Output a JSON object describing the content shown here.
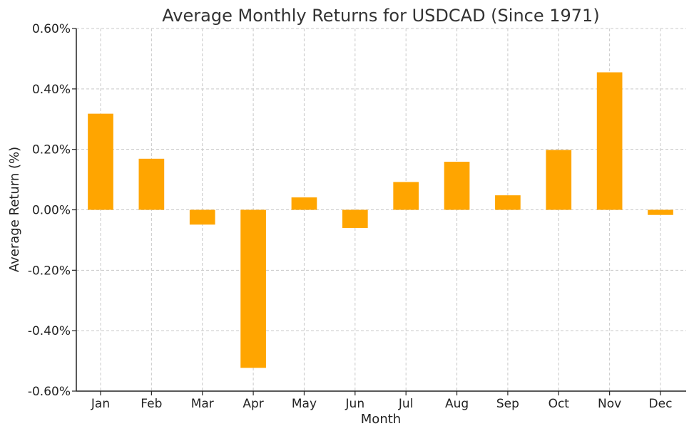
{
  "chart_data": {
    "type": "bar",
    "title": "Average Monthly Returns for USDCAD (Since 1971)",
    "xlabel": "Month",
    "ylabel": "Average Return (%)",
    "categories": [
      "Jan",
      "Feb",
      "Mar",
      "Apr",
      "May",
      "Jun",
      "Jul",
      "Aug",
      "Sep",
      "Oct",
      "Nov",
      "Dec"
    ],
    "values": [
      0.318,
      0.169,
      -0.049,
      -0.523,
      0.041,
      -0.06,
      0.092,
      0.159,
      0.048,
      0.198,
      0.455,
      -0.017
    ],
    "ylim": [
      -0.6,
      0.6
    ],
    "yticks": [
      -0.6,
      -0.4,
      -0.2,
      0.0,
      0.2,
      0.4,
      0.6
    ],
    "ytick_labels": [
      "-0.60%",
      "-0.40%",
      "-0.20%",
      "0.00%",
      "0.20%",
      "0.40%",
      "0.60%"
    ],
    "grid": true,
    "bar_color": "#FFA500"
  }
}
